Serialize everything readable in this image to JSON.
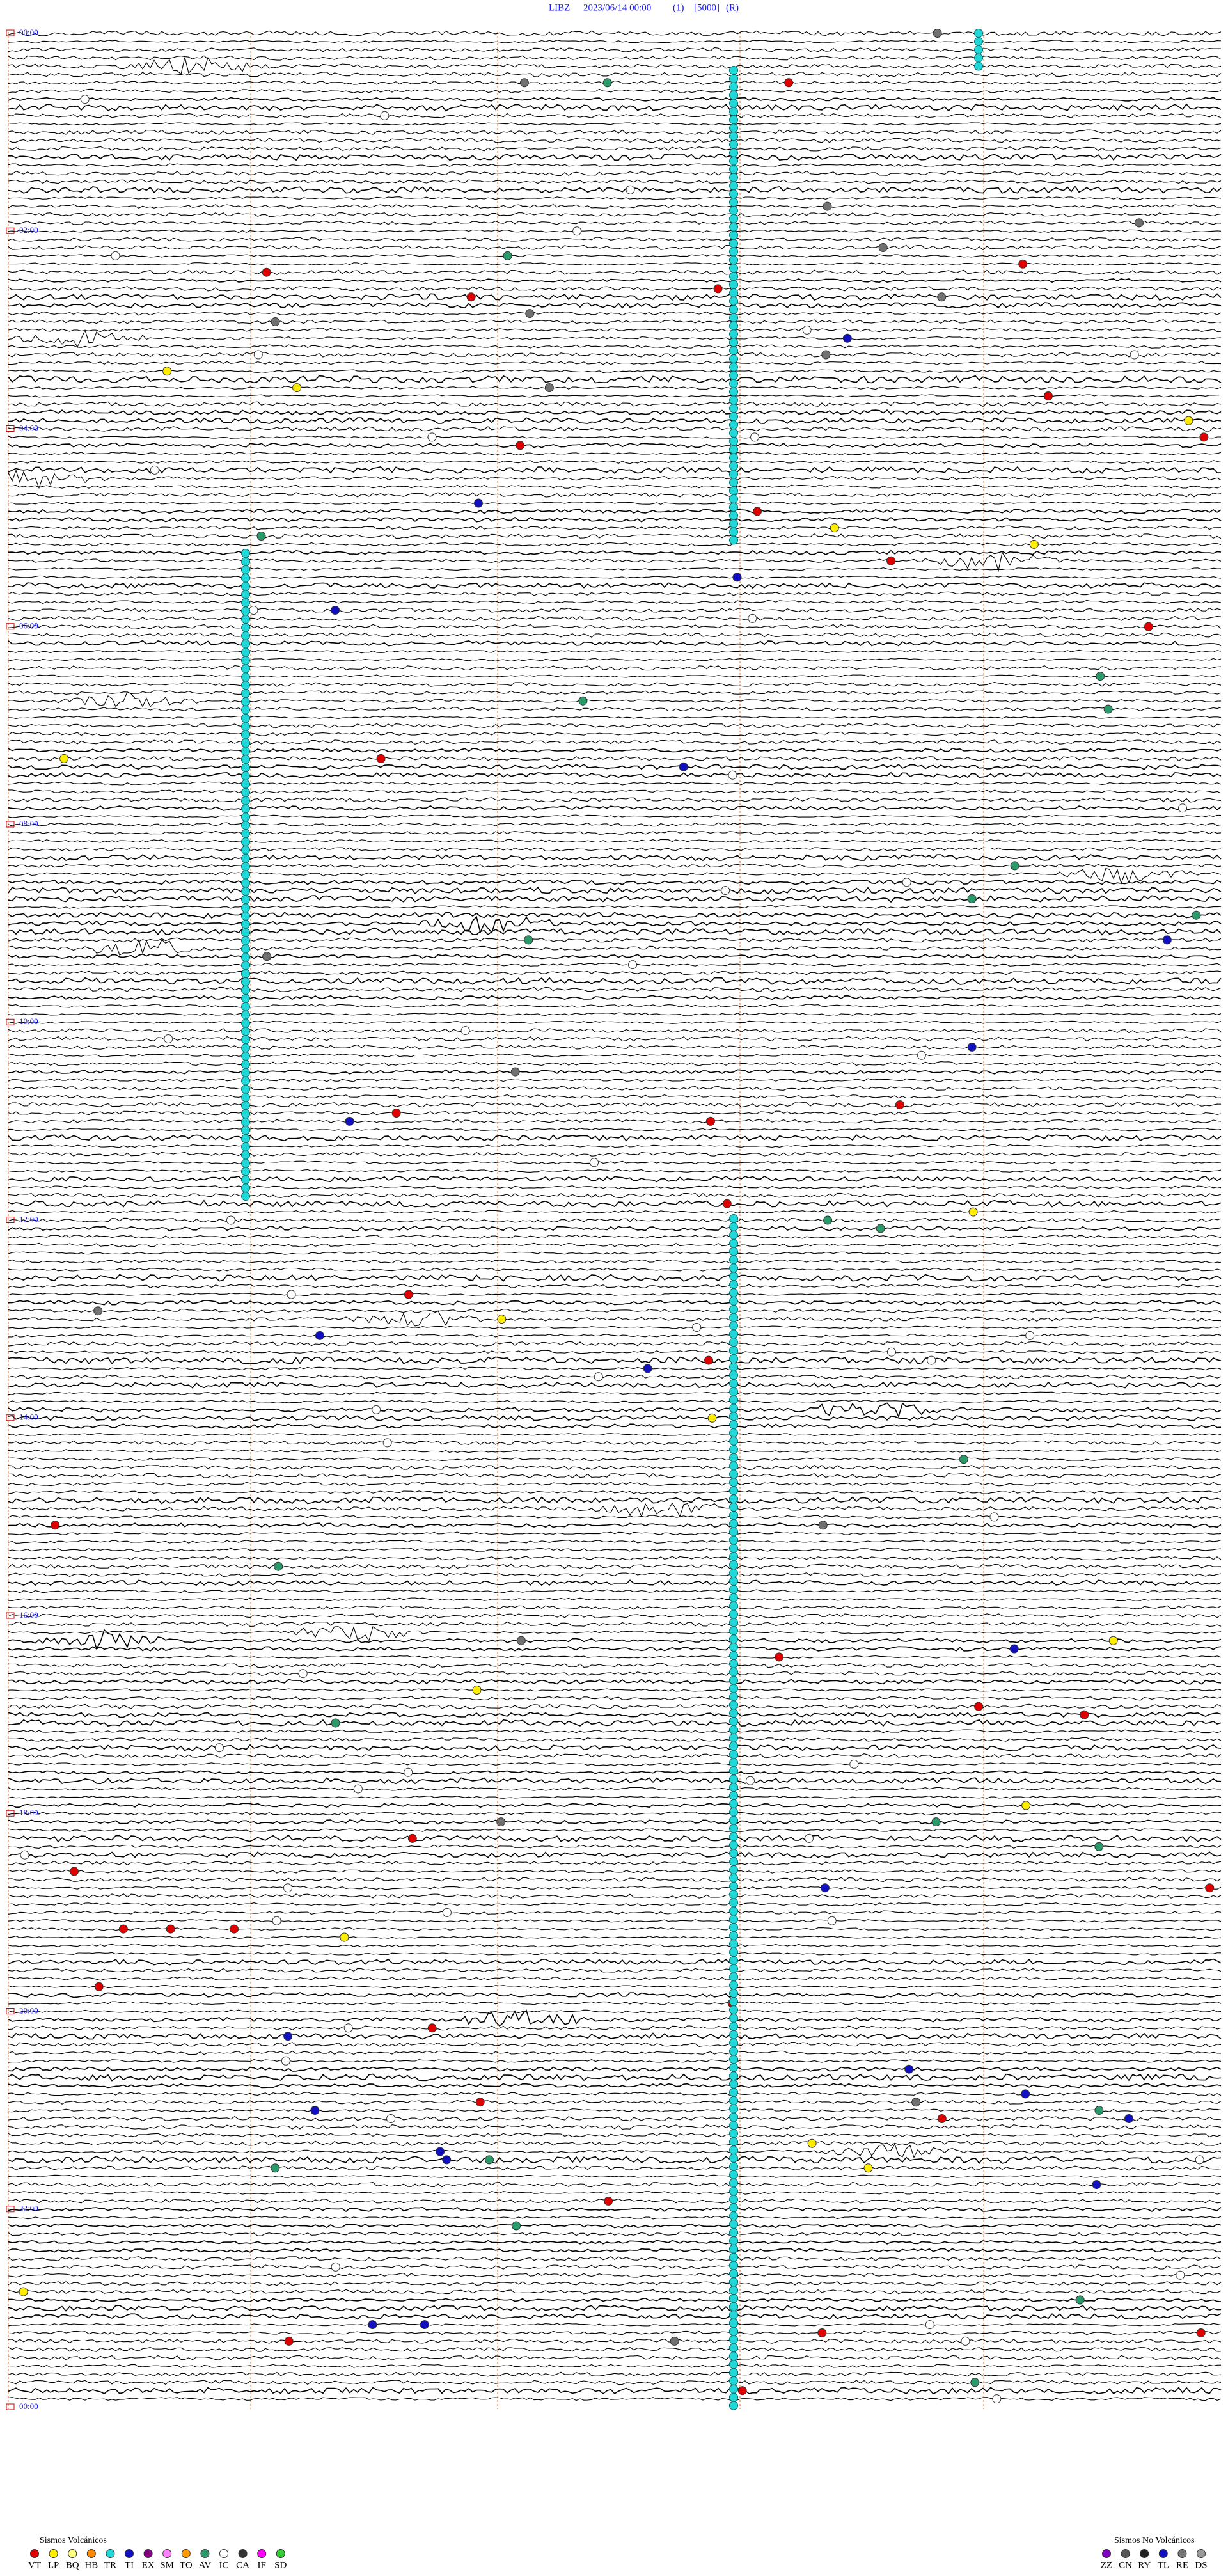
{
  "header": {
    "station": "LIBZ",
    "datetime": "2023/06/14 00:00",
    "channel": "(1)",
    "scale": "[5000]",
    "mode": "(R)"
  },
  "time_labels": [
    "00:00",
    "02:00",
    "04:00",
    "06:00",
    "08:00",
    "10:00",
    "12:00",
    "14:00",
    "16:00",
    "18:00",
    "20:00",
    "22:00",
    "00:00"
  ],
  "legend": {
    "volcanic": {
      "title": "Sismos Volcánicos",
      "codes": [
        "VT",
        "LP",
        "BQ",
        "HB",
        "TR",
        "TI",
        "EX",
        "SM",
        "TO",
        "AV",
        "IC",
        "CA",
        "IF",
        "SD"
      ]
    },
    "non_volcanic": {
      "title": "Sismos No Volcánicos",
      "codes": [
        "ZZ",
        "CN",
        "RY",
        "TL",
        "RE",
        "DS"
      ]
    }
  }
}
